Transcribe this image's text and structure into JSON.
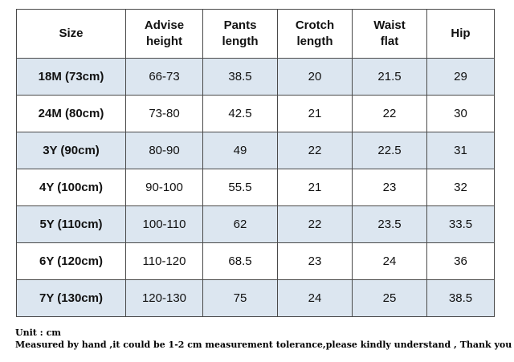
{
  "table": {
    "headers": [
      "Size",
      "Advise\nheight",
      "Pants\nlength",
      "Crotch\nlength",
      "Waist\nflat",
      "Hip"
    ],
    "rows": [
      [
        "18M (73cm)",
        "66-73",
        "38.5",
        "20",
        "21.5",
        "29"
      ],
      [
        "24M (80cm)",
        "73-80",
        "42.5",
        "21",
        "22",
        "30"
      ],
      [
        "3Y (90cm)",
        "80-90",
        "49",
        "22",
        "22.5",
        "31"
      ],
      [
        "4Y (100cm)",
        "90-100",
        "55.5",
        "21",
        "23",
        "32"
      ],
      [
        "5Y (110cm)",
        "100-110",
        "62",
        "22",
        "23.5",
        "33.5"
      ],
      [
        "6Y (120cm)",
        "110-120",
        "68.5",
        "23",
        "24",
        "36"
      ],
      [
        "7Y (130cm)",
        "120-130",
        "75",
        "24",
        "25",
        "38.5"
      ]
    ],
    "shaded_row_color": "#dce6f0",
    "border_color": "#4a4a4a"
  },
  "notes": {
    "unit": "Unit : cm",
    "disclaimer": "Measured by hand ,it could be 1-2 cm measurement tolerance,please kindly understand , Thank you !"
  }
}
